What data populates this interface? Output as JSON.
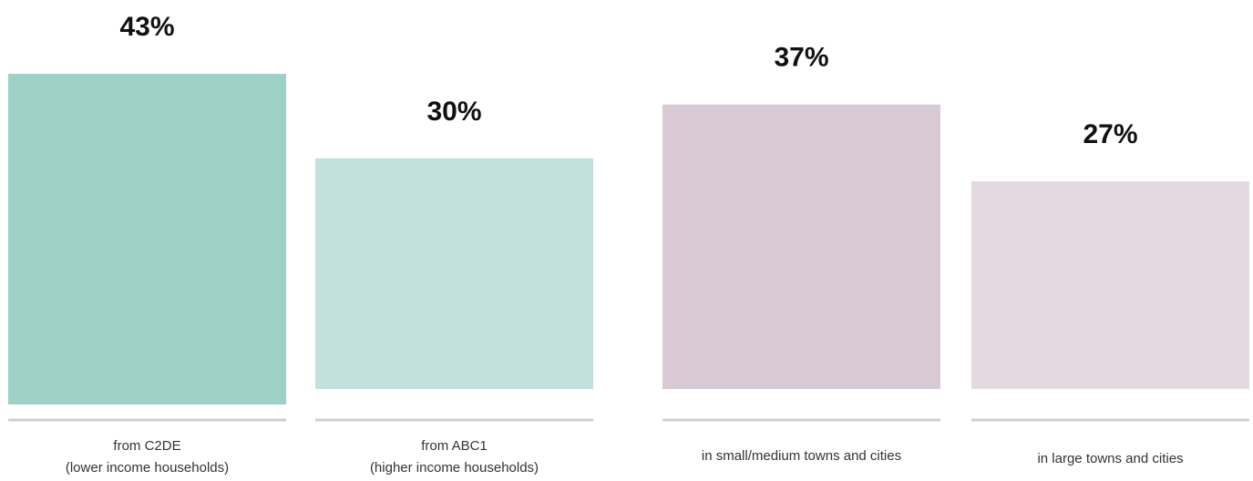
{
  "chart_data": {
    "type": "bar",
    "categories": [
      [
        "from C2DE",
        "(lower income households)"
      ],
      [
        "from ABC1",
        "(higher income households)"
      ],
      [
        "in small/medium towns and cities"
      ],
      [
        "in large towns and cities"
      ]
    ],
    "values": [
      43,
      30,
      37,
      27
    ],
    "value_labels": [
      "43%",
      "30%",
      "37%",
      "27%"
    ],
    "colors": [
      "#9dd0c7",
      "#c2e1dd",
      "#d8cad5",
      "#e4d9e1"
    ],
    "unit": "%",
    "title": "",
    "xlabel": "",
    "ylabel": "",
    "grid": false,
    "legend": "none"
  }
}
